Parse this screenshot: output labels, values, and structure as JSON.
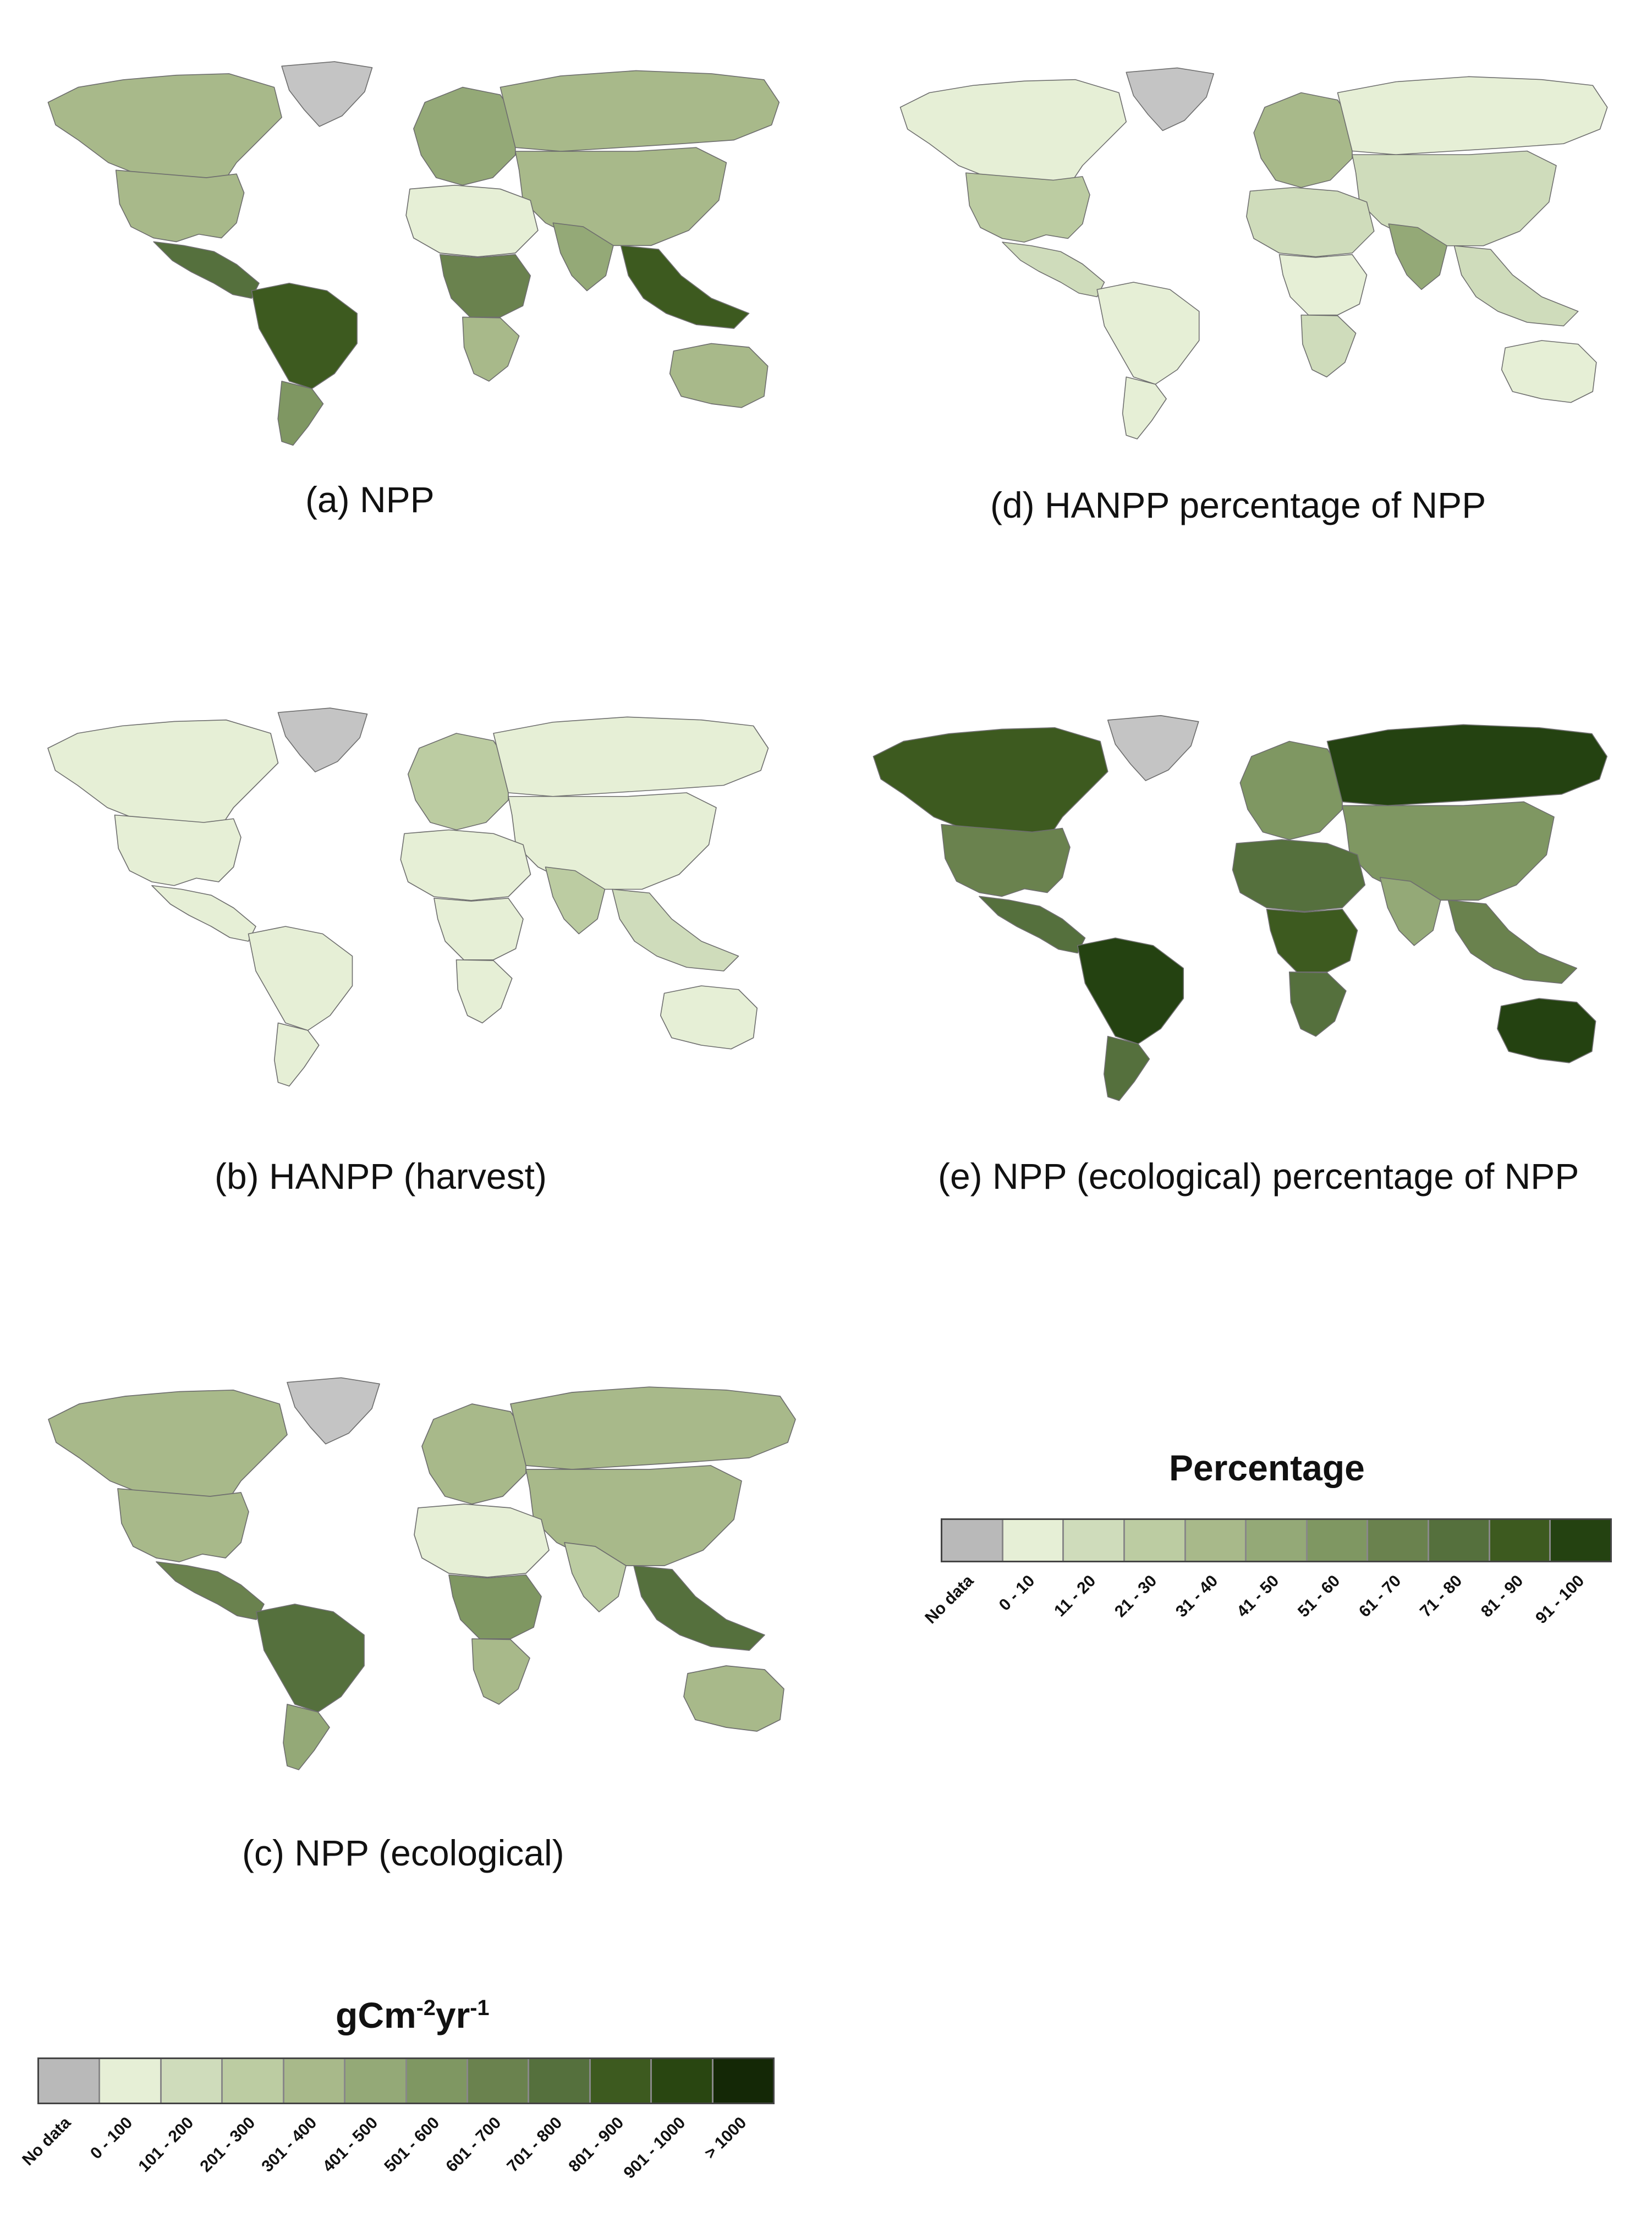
{
  "panels": {
    "a": {
      "caption": "(a)  NPP",
      "levels": {
        "north_america": 4,
        "usa": 4,
        "central_america": 8,
        "south_america_north": 9,
        "south_america_south": 6,
        "greenland": 0,
        "europe": 5,
        "russia": 4,
        "asia": 4,
        "south_asia": 5,
        "se_asia": 9,
        "africa_north": 1,
        "africa_central": 7,
        "africa_south": 4,
        "australia": 4
      }
    },
    "b": {
      "caption": "(b) HANPP (harvest)",
      "levels": {
        "north_america": 1,
        "usa": 1,
        "central_america": 1,
        "south_america_north": 1,
        "south_america_south": 1,
        "greenland": 0,
        "europe": 3,
        "russia": 1,
        "asia": 1,
        "south_asia": 3,
        "se_asia": 2,
        "africa_north": 1,
        "africa_central": 1,
        "africa_south": 1,
        "australia": 1
      }
    },
    "c": {
      "caption": "(c) NPP (ecological)",
      "levels": {
        "north_america": 4,
        "usa": 4,
        "central_america": 7,
        "south_america_north": 8,
        "south_america_south": 5,
        "greenland": 0,
        "europe": 4,
        "russia": 4,
        "asia": 4,
        "south_asia": 3,
        "se_asia": 8,
        "africa_north": 1,
        "africa_central": 6,
        "africa_south": 4,
        "australia": 4
      }
    },
    "d": {
      "caption": "(d) HANPP percentage of NPP",
      "levels": {
        "north_america": 1,
        "usa": 3,
        "central_america": 2,
        "south_america_north": 1,
        "south_america_south": 1,
        "greenland": 0,
        "europe": 4,
        "russia": 1,
        "asia": 2,
        "south_asia": 5,
        "se_asia": 2,
        "africa_north": 2,
        "africa_central": 1,
        "africa_south": 2,
        "australia": 1
      }
    },
    "e": {
      "caption": "(e) NPP (ecological) percentage of NPP",
      "levels": {
        "north_america": 9,
        "usa": 7,
        "central_america": 8,
        "south_america_north": 10,
        "south_america_south": 8,
        "greenland": 0,
        "europe": 6,
        "russia": 10,
        "asia": 6,
        "south_asia": 5,
        "se_asia": 7,
        "africa_north": 8,
        "africa_central": 9,
        "africa_south": 8,
        "australia": 10
      }
    }
  },
  "legend_npp": {
    "title_main": "gCm",
    "title_sup1": "-2",
    "title_mid": "yr",
    "title_sup2": "-1",
    "labels": [
      "No data",
      "0 - 100",
      "101 - 200",
      "201 - 300",
      "301 - 400",
      "401 - 500",
      "501 - 600",
      "601 - 700",
      "701 - 800",
      "801 - 900",
      "901 - 1000",
      "> 1000"
    ],
    "colors": [
      "#b9b9b9",
      "#e6efd6",
      "#cfdcbb",
      "#bccca2",
      "#a8b98a",
      "#94a977",
      "#7f9762",
      "#6a824e",
      "#55703d",
      "#3d5a1f",
      "#294611",
      "#142806"
    ]
  },
  "legend_pct": {
    "title": "Percentage",
    "labels": [
      "No data",
      "0 - 10",
      "11 - 20",
      "21 - 30",
      "31 - 40",
      "41 - 50",
      "51 - 60",
      "61 - 70",
      "71 - 80",
      "81 - 90",
      "91 - 100"
    ],
    "colors": [
      "#b9b9b9",
      "#e6efd6",
      "#cfdcbb",
      "#bccca2",
      "#a8b98a",
      "#94a977",
      "#7f9762",
      "#6a824e",
      "#55703d",
      "#3d5a1f",
      "#244211"
    ]
  }
}
